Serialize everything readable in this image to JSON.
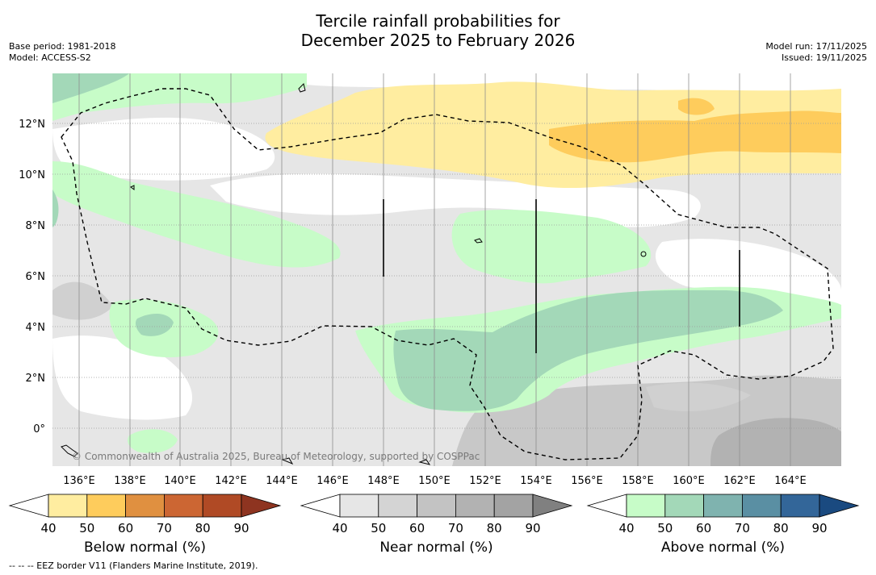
{
  "title": {
    "line1": "Tercile rainfall probabilities for",
    "line2": "December 2025 to February 2026"
  },
  "meta": {
    "base_period": "Base period: 1981-2018",
    "model": "Model: ACCESS-S2",
    "model_run": "Model run: 17/11/2025",
    "issued": "Issued: 19/11/2025"
  },
  "map": {
    "copyright": "© Commonwealth of Australia 2025, Bureau of Meteorology, supported by COSPPac",
    "lat_labels": [
      "12°N",
      "10°N",
      "8°N",
      "6°N",
      "4°N",
      "2°N",
      "0°"
    ],
    "lon_labels": [
      "136°E",
      "138°E",
      "140°E",
      "142°E",
      "144°E",
      "146°E",
      "148°E",
      "150°E",
      "152°E",
      "154°E",
      "156°E",
      "158°E",
      "160°E",
      "162°E",
      "164°E"
    ]
  },
  "colorbars": [
    {
      "title": "Below normal (%)",
      "ticks": [
        "40",
        "50",
        "60",
        "70",
        "80",
        "90"
      ],
      "colors": [
        "#ffffff",
        "#ffeda0",
        "#fecc5c",
        "#e09040",
        "#cc6633",
        "#b04a25",
        "#8e3420"
      ]
    },
    {
      "title": "Near normal (%)",
      "ticks": [
        "40",
        "50",
        "60",
        "70",
        "80",
        "90"
      ],
      "colors": [
        "#ffffff",
        "#e6e6e6",
        "#d4d4d4",
        "#c3c3c3",
        "#b2b2b2",
        "#a3a3a3",
        "#808080"
      ]
    },
    {
      "title": "Above normal (%)",
      "ticks": [
        "40",
        "50",
        "60",
        "70",
        "80",
        "90"
      ],
      "colors": [
        "#ffffff",
        "#c7fcc8",
        "#a3d8b8",
        "#7fb3af",
        "#5a8fa3",
        "#336699",
        "#1a4a80"
      ]
    }
  ],
  "footer": {
    "legend": "--  --  -- EEZ border V11 (Flanders Marine Institute, 2019)."
  }
}
